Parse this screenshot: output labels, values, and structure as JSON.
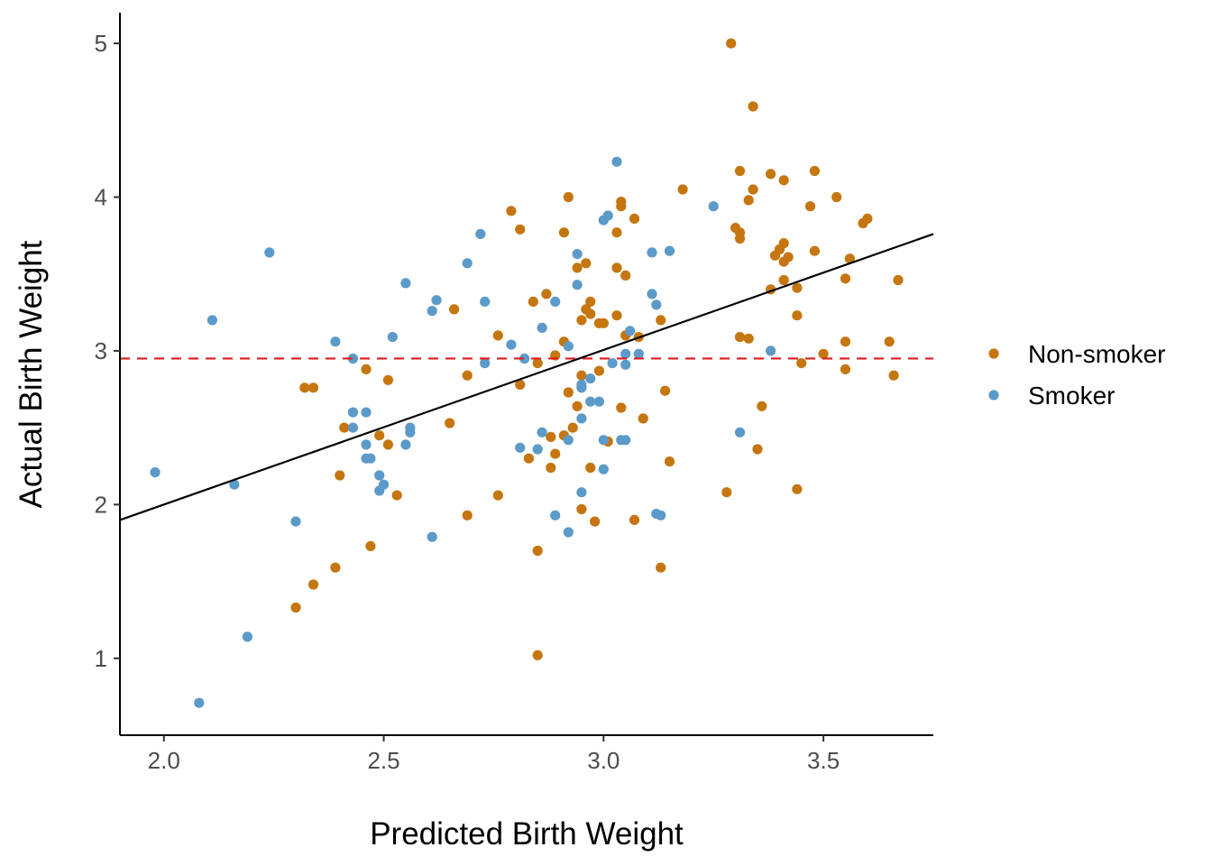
{
  "chart_data": {
    "type": "scatter",
    "xlabel": "Predicted Birth Weight",
    "ylabel": "Actual Birth Weight",
    "xlim": [
      1.9,
      3.75
    ],
    "ylim": [
      0.5,
      5.2
    ],
    "x_ticks": [
      "2.0",
      "2.5",
      "3.0",
      "3.5"
    ],
    "y_ticks": [
      "1",
      "2",
      "3",
      "4",
      "5"
    ],
    "grid": false,
    "legend_position": "right",
    "reference_line": {
      "y": 2.95,
      "style": "dashed",
      "color": "#e41a1c"
    },
    "fit_line": {
      "x": [
        1.9,
        3.75
      ],
      "y": [
        1.9,
        3.76
      ],
      "color": "#000000"
    },
    "series": [
      {
        "name": "Non-smoker",
        "color": "#c5760f",
        "points": [
          [
            3.29,
            5.0
          ],
          [
            3.34,
            4.59
          ],
          [
            3.31,
            4.17
          ],
          [
            3.38,
            4.15
          ],
          [
            3.48,
            4.17
          ],
          [
            3.41,
            4.11
          ],
          [
            3.18,
            4.05
          ],
          [
            3.34,
            4.05
          ],
          [
            3.53,
            4.0
          ],
          [
            3.33,
            3.98
          ],
          [
            2.92,
            4.0
          ],
          [
            3.04,
            3.97
          ],
          [
            3.04,
            3.94
          ],
          [
            3.47,
            3.94
          ],
          [
            3.07,
            3.86
          ],
          [
            3.6,
            3.86
          ],
          [
            3.59,
            3.83
          ],
          [
            3.3,
            3.8
          ],
          [
            3.31,
            3.77
          ],
          [
            2.81,
            3.79
          ],
          [
            2.79,
            3.91
          ],
          [
            3.03,
            3.77
          ],
          [
            2.91,
            3.77
          ],
          [
            3.31,
            3.73
          ],
          [
            3.41,
            3.7
          ],
          [
            3.4,
            3.66
          ],
          [
            3.48,
            3.65
          ],
          [
            3.39,
            3.62
          ],
          [
            3.42,
            3.61
          ],
          [
            3.56,
            3.6
          ],
          [
            3.41,
            3.58
          ],
          [
            2.96,
            3.57
          ],
          [
            2.94,
            3.54
          ],
          [
            3.03,
            3.54
          ],
          [
            3.05,
            3.49
          ],
          [
            3.55,
            3.47
          ],
          [
            3.41,
            3.46
          ],
          [
            3.67,
            3.46
          ],
          [
            3.44,
            3.41
          ],
          [
            3.38,
            3.4
          ],
          [
            2.87,
            3.37
          ],
          [
            2.84,
            3.32
          ],
          [
            2.97,
            3.32
          ],
          [
            2.66,
            3.27
          ],
          [
            2.96,
            3.27
          ],
          [
            2.97,
            3.24
          ],
          [
            3.03,
            3.23
          ],
          [
            3.44,
            3.23
          ],
          [
            2.95,
            3.2
          ],
          [
            3.13,
            3.2
          ],
          [
            3.0,
            3.18
          ],
          [
            2.99,
            3.18
          ],
          [
            3.05,
            3.1
          ],
          [
            3.08,
            3.09
          ],
          [
            2.76,
            3.1
          ],
          [
            3.31,
            3.09
          ],
          [
            3.33,
            3.08
          ],
          [
            2.91,
            3.06
          ],
          [
            3.55,
            3.06
          ],
          [
            3.65,
            3.06
          ],
          [
            3.5,
            2.98
          ],
          [
            2.89,
            2.97
          ],
          [
            2.85,
            2.92
          ],
          [
            3.45,
            2.92
          ],
          [
            2.46,
            2.88
          ],
          [
            2.99,
            2.87
          ],
          [
            3.55,
            2.88
          ],
          [
            2.69,
            2.84
          ],
          [
            3.66,
            2.84
          ],
          [
            2.95,
            2.84
          ],
          [
            2.51,
            2.81
          ],
          [
            2.81,
            2.78
          ],
          [
            2.32,
            2.76
          ],
          [
            2.34,
            2.76
          ],
          [
            3.14,
            2.74
          ],
          [
            2.92,
            2.73
          ],
          [
            2.94,
            2.64
          ],
          [
            3.36,
            2.64
          ],
          [
            3.04,
            2.63
          ],
          [
            3.09,
            2.56
          ],
          [
            2.65,
            2.53
          ],
          [
            2.41,
            2.5
          ],
          [
            2.93,
            2.5
          ],
          [
            2.91,
            2.45
          ],
          [
            2.49,
            2.45
          ],
          [
            2.88,
            2.44
          ],
          [
            3.01,
            2.41
          ],
          [
            2.51,
            2.39
          ],
          [
            3.35,
            2.36
          ],
          [
            2.89,
            2.33
          ],
          [
            2.83,
            2.3
          ],
          [
            3.15,
            2.28
          ],
          [
            2.97,
            2.24
          ],
          [
            2.88,
            2.24
          ],
          [
            2.4,
            2.19
          ],
          [
            3.44,
            2.1
          ],
          [
            3.28,
            2.08
          ],
          [
            2.53,
            2.06
          ],
          [
            2.76,
            2.06
          ],
          [
            2.95,
            1.97
          ],
          [
            2.69,
            1.93
          ],
          [
            2.98,
            1.89
          ],
          [
            3.07,
            1.9
          ],
          [
            2.47,
            1.73
          ],
          [
            2.85,
            1.7
          ],
          [
            2.39,
            1.59
          ],
          [
            3.13,
            1.59
          ],
          [
            2.34,
            1.48
          ],
          [
            2.3,
            1.33
          ],
          [
            2.85,
            1.02
          ]
        ]
      },
      {
        "name": "Smoker",
        "color": "#5b9ac9",
        "points": [
          [
            3.03,
            4.23
          ],
          [
            3.25,
            3.94
          ],
          [
            3.01,
            3.88
          ],
          [
            3.0,
            3.85
          ],
          [
            2.72,
            3.76
          ],
          [
            3.15,
            3.65
          ],
          [
            3.11,
            3.64
          ],
          [
            2.24,
            3.64
          ],
          [
            2.94,
            3.63
          ],
          [
            2.69,
            3.57
          ],
          [
            2.55,
            3.44
          ],
          [
            2.94,
            3.43
          ],
          [
            3.11,
            3.37
          ],
          [
            2.62,
            3.33
          ],
          [
            2.73,
            3.32
          ],
          [
            2.89,
            3.32
          ],
          [
            3.12,
            3.3
          ],
          [
            2.61,
            3.26
          ],
          [
            2.11,
            3.2
          ],
          [
            2.86,
            3.15
          ],
          [
            3.06,
            3.13
          ],
          [
            2.52,
            3.09
          ],
          [
            2.39,
            3.06
          ],
          [
            2.79,
            3.04
          ],
          [
            2.92,
            3.03
          ],
          [
            3.38,
            3.0
          ],
          [
            3.05,
            2.98
          ],
          [
            3.08,
            2.98
          ],
          [
            2.43,
            2.95
          ],
          [
            2.82,
            2.95
          ],
          [
            2.73,
            2.92
          ],
          [
            3.02,
            2.92
          ],
          [
            3.05,
            2.91
          ],
          [
            2.97,
            2.82
          ],
          [
            2.95,
            2.78
          ],
          [
            2.95,
            2.76
          ],
          [
            2.97,
            2.67
          ],
          [
            2.99,
            2.67
          ],
          [
            2.43,
            2.6
          ],
          [
            2.46,
            2.6
          ],
          [
            2.95,
            2.56
          ],
          [
            2.56,
            2.5
          ],
          [
            2.43,
            2.5
          ],
          [
            2.56,
            2.47
          ],
          [
            2.86,
            2.47
          ],
          [
            2.92,
            2.42
          ],
          [
            3.0,
            2.42
          ],
          [
            3.04,
            2.42
          ],
          [
            3.05,
            2.42
          ],
          [
            2.46,
            2.39
          ],
          [
            2.55,
            2.39
          ],
          [
            2.81,
            2.37
          ],
          [
            2.85,
            2.36
          ],
          [
            3.31,
            2.47
          ],
          [
            2.46,
            2.3
          ],
          [
            2.47,
            2.3
          ],
          [
            3.0,
            2.23
          ],
          [
            1.98,
            2.21
          ],
          [
            2.49,
            2.19
          ],
          [
            2.16,
            2.13
          ],
          [
            2.5,
            2.13
          ],
          [
            2.49,
            2.09
          ],
          [
            2.95,
            2.08
          ],
          [
            3.12,
            1.94
          ],
          [
            3.13,
            1.93
          ],
          [
            2.89,
            1.93
          ],
          [
            2.3,
            1.89
          ],
          [
            2.92,
            1.82
          ],
          [
            2.61,
            1.79
          ],
          [
            2.19,
            1.14
          ],
          [
            2.08,
            0.71
          ]
        ]
      }
    ]
  }
}
